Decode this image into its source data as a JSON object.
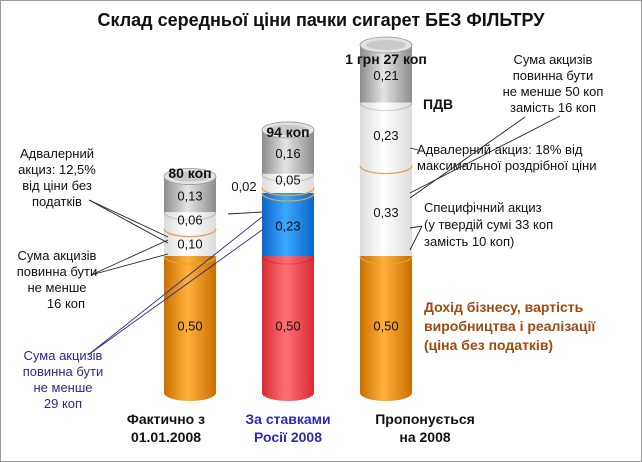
{
  "chart_data": {
    "type": "bar",
    "stacked": true,
    "title": "Склад  середньої ціни пачки сигарет БЕЗ ФІЛЬТРУ",
    "categories": [
      [
        "Фактично з",
        "01.01.2008"
      ],
      [
        "За ставками",
        "Росії 2008"
      ],
      [
        "Пропонується",
        "на 2008"
      ]
    ],
    "totals": [
      "80 коп",
      "94 коп",
      "1 грн 27 коп"
    ],
    "columns": [
      {
        "segments": [
          {
            "value": 0.5,
            "label": "0,50",
            "color": "#f39a1f"
          },
          {
            "value": 0.1,
            "label": "0,10",
            "color": "#ffffff"
          },
          {
            "value": 0.06,
            "label": "0,06",
            "color": "#ffffff"
          },
          {
            "value": 0.13,
            "label": "0,13",
            "color": "#c8c8c8"
          }
        ]
      },
      {
        "segments": [
          {
            "value": 0.5,
            "label": "0,50",
            "color": "#f0484f"
          },
          {
            "value": 0.23,
            "label": "0,23",
            "color": "#1a8ff0"
          },
          {
            "value": 0.02,
            "label": "0,02",
            "color": "#ffffff"
          },
          {
            "value": 0.05,
            "label": "0,05",
            "color": "#ffffff"
          },
          {
            "value": 0.16,
            "label": "0,16",
            "color": "#c8c8c8"
          }
        ]
      },
      {
        "segments": [
          {
            "value": 0.5,
            "label": "0,50",
            "color": "#f39a1f"
          },
          {
            "value": 0.33,
            "label": "0,33",
            "color": "#ffffff"
          },
          {
            "value": 0.23,
            "label": "0,23",
            "color": "#ffffff"
          },
          {
            "value": 0.21,
            "label": "0,21",
            "color": "#c8c8c8"
          }
        ]
      }
    ],
    "annotations": {
      "advalorem_left": [
        "Адвалерний",
        "акциз: 12,5%",
        "від ціни без",
        "податків"
      ],
      "min_excise_16": [
        "Сума акцизів",
        "повинна бути",
        "не менше",
        "16 коп"
      ],
      "min_excise_29": [
        "Сума акцизів",
        "повинна бути",
        "не менше",
        "29 коп"
      ],
      "min_excise_50": [
        "Сума акцизів",
        "повинна бути",
        "не менше 50 коп",
        "замість 16 коп"
      ],
      "pdv": "ПДВ",
      "advalorem_right": [
        "Адвалерний акциз: 18% від",
        "максимальної роздрібної ціни"
      ],
      "specific": [
        "Специфічний акциз",
        "(у твердій сумі 33  коп",
        "замість 10 коп)"
      ],
      "business": [
        "Дохід бізнесу, вартість",
        "виробництва і реалізації",
        "(ціна без податків)"
      ]
    },
    "ylim": [
      0,
      1.3
    ],
    "grid": false,
    "legend": "none"
  },
  "colors": {
    "orange": "#f39a1f",
    "red": "#f0484f",
    "blue": "#1a8ff0",
    "gray": "#c8c8c8",
    "legend_text": "#9c4a10",
    "note_blue": "#2a2a8a",
    "category_blue": "#2b2bb0"
  }
}
